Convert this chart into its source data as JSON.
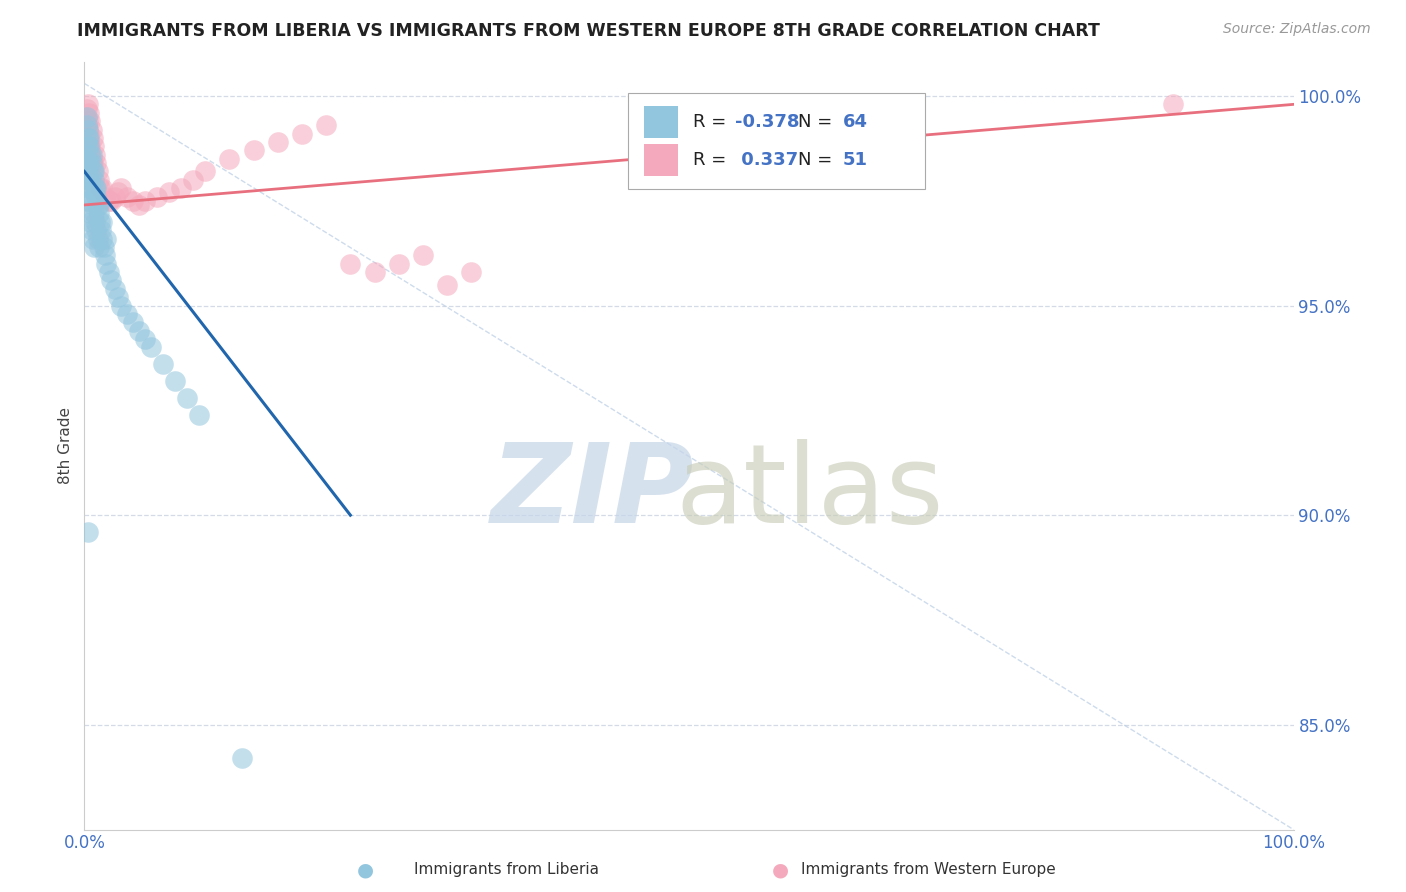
{
  "title": "IMMIGRANTS FROM LIBERIA VS IMMIGRANTS FROM WESTERN EUROPE 8TH GRADE CORRELATION CHART",
  "source": "Source: ZipAtlas.com",
  "ylabel": "8th Grade",
  "xlim": [
    0.0,
    1.0
  ],
  "ylim": [
    0.825,
    1.008
  ],
  "yticks": [
    0.85,
    0.9,
    0.95,
    1.0
  ],
  "ytick_labels": [
    "85.0%",
    "90.0%",
    "95.0%",
    "100.0%"
  ],
  "xticks": [
    0.0,
    1.0
  ],
  "xtick_labels": [
    "0.0%",
    "100.0%"
  ],
  "liberia_R": -0.378,
  "liberia_N": 64,
  "western_europe_R": 0.337,
  "western_europe_N": 51,
  "liberia_color": "#92c5de",
  "western_europe_color": "#f4a9bc",
  "liberia_trend_color": "#2166ac",
  "western_europe_trend_color": "#e8707e",
  "diagonal_color": "#b8cce4",
  "background_color": "#ffffff",
  "grid_color": "#d0d8e4",
  "liberia_x": [
    0.001,
    0.002,
    0.002,
    0.003,
    0.003,
    0.003,
    0.004,
    0.004,
    0.004,
    0.005,
    0.005,
    0.005,
    0.006,
    0.006,
    0.006,
    0.007,
    0.007,
    0.007,
    0.008,
    0.008,
    0.008,
    0.009,
    0.009,
    0.01,
    0.01,
    0.011,
    0.011,
    0.012,
    0.012,
    0.013,
    0.014,
    0.015,
    0.016,
    0.017,
    0.018,
    0.02,
    0.022,
    0.025,
    0.028,
    0.03,
    0.035,
    0.04,
    0.045,
    0.05,
    0.055,
    0.065,
    0.075,
    0.085,
    0.095,
    0.002,
    0.003,
    0.004,
    0.006,
    0.008,
    0.01,
    0.012,
    0.015,
    0.018,
    0.002,
    0.003,
    0.004,
    0.005,
    0.13,
    0.003
  ],
  "liberia_y": [
    0.982,
    0.985,
    0.978,
    0.99,
    0.983,
    0.975,
    0.988,
    0.98,
    0.972,
    0.986,
    0.978,
    0.97,
    0.984,
    0.976,
    0.968,
    0.982,
    0.974,
    0.966,
    0.98,
    0.972,
    0.964,
    0.978,
    0.97,
    0.976,
    0.968,
    0.974,
    0.966,
    0.972,
    0.964,
    0.97,
    0.968,
    0.966,
    0.964,
    0.962,
    0.96,
    0.958,
    0.956,
    0.954,
    0.952,
    0.95,
    0.948,
    0.946,
    0.944,
    0.942,
    0.94,
    0.936,
    0.932,
    0.928,
    0.924,
    0.995,
    0.992,
    0.99,
    0.986,
    0.982,
    0.978,
    0.974,
    0.97,
    0.966,
    0.993,
    0.988,
    0.984,
    0.98,
    0.842,
    0.896
  ],
  "western_europe_x": [
    0.001,
    0.002,
    0.002,
    0.003,
    0.003,
    0.004,
    0.004,
    0.005,
    0.005,
    0.006,
    0.006,
    0.007,
    0.008,
    0.009,
    0.01,
    0.011,
    0.012,
    0.013,
    0.015,
    0.017,
    0.02,
    0.022,
    0.025,
    0.028,
    0.03,
    0.035,
    0.04,
    0.045,
    0.05,
    0.06,
    0.07,
    0.08,
    0.09,
    0.1,
    0.12,
    0.14,
    0.16,
    0.18,
    0.2,
    0.22,
    0.24,
    0.26,
    0.28,
    0.3,
    0.32,
    0.002,
    0.003,
    0.004,
    0.005,
    0.007,
    0.9
  ],
  "western_europe_y": [
    0.995,
    0.993,
    0.99,
    0.998,
    0.992,
    0.996,
    0.989,
    0.994,
    0.987,
    0.992,
    0.985,
    0.99,
    0.988,
    0.986,
    0.984,
    0.982,
    0.98,
    0.978,
    0.978,
    0.976,
    0.975,
    0.975,
    0.976,
    0.977,
    0.978,
    0.976,
    0.975,
    0.974,
    0.975,
    0.976,
    0.977,
    0.978,
    0.98,
    0.982,
    0.985,
    0.987,
    0.989,
    0.991,
    0.993,
    0.96,
    0.958,
    0.96,
    0.962,
    0.955,
    0.958,
    0.997,
    0.994,
    0.991,
    0.988,
    0.984,
    0.998
  ],
  "lib_trend_x0": 0.0,
  "lib_trend_x1": 0.22,
  "lib_trend_y0": 0.982,
  "lib_trend_y1": 0.9,
  "we_trend_x0": 0.0,
  "we_trend_x1": 1.0,
  "we_trend_y0": 0.974,
  "we_trend_y1": 0.998
}
